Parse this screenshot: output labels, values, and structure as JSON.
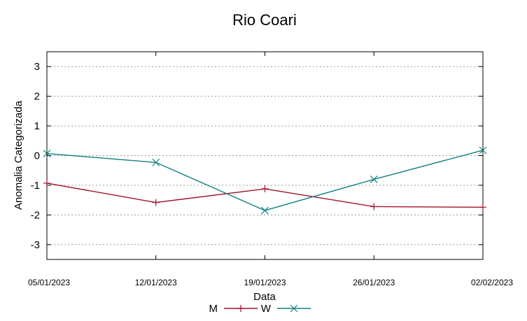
{
  "chart_data": {
    "type": "line",
    "title": "Rio Coari",
    "xlabel": "Data",
    "ylabel": "Anomalia Categorizada",
    "x": [
      "05/01/2023",
      "12/01/2023",
      "19/01/2023",
      "26/01/2023",
      "02/02/2023"
    ],
    "ylim": [
      -3.5,
      3.5
    ],
    "yticks": [
      3,
      2,
      1,
      0,
      -1,
      -2,
      -3
    ],
    "grid": true,
    "legend_position": "bottom-center",
    "series": [
      {
        "name": "M",
        "color": "#a0122a",
        "marker": "plus",
        "values": [
          -0.93,
          -1.58,
          -1.12,
          -1.72,
          -1.74
        ]
      },
      {
        "name": "W",
        "color": "#127f80",
        "marker": "cross",
        "values": [
          0.07,
          -0.23,
          -1.85,
          -0.8,
          0.18
        ]
      }
    ]
  }
}
